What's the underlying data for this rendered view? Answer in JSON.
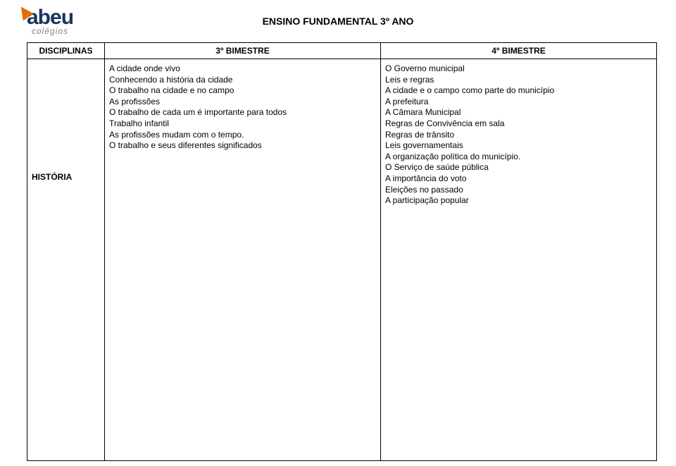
{
  "logo": {
    "brand": "abeu",
    "sub": "colégios"
  },
  "page_title": "ENSINO FUNDAMENTAL 3º ANO",
  "table": {
    "headers": [
      "DISCIPLINAS",
      "3º BIMESTRE",
      "4º BIMESTRE"
    ],
    "row_label": "HISTÓRIA",
    "col_b": [
      "A cidade onde vivo",
      "Conhecendo a história da cidade",
      "O trabalho na cidade e no campo",
      "As profissões",
      "O trabalho de cada um é importante para todos",
      "Trabalho infantil",
      "As profissões mudam com o tempo.",
      "O trabalho e seus diferentes significados"
    ],
    "col_c": [
      "O Governo municipal",
      "Leis e regras",
      "A cidade e o campo como parte do município",
      "A prefeitura",
      "A Câmara Municipal",
      "Regras de Convivência em sala",
      "Regras de trânsito",
      "Leis governamentais",
      "A organização política do município.",
      "O Serviço de saúde pública",
      "A importância do voto",
      "Eleições no passado",
      "A participação popular"
    ]
  },
  "styling": {
    "page_bg": "#ffffff",
    "text_color": "#000000",
    "border_color": "#000000",
    "logo_brand_color": "#17365d",
    "logo_sub_color": "#7f7f7f",
    "logo_wedge_color": "#e36c0a",
    "title_fontsize": 14,
    "cell_fontsize": 12,
    "font_family": "Arial"
  }
}
